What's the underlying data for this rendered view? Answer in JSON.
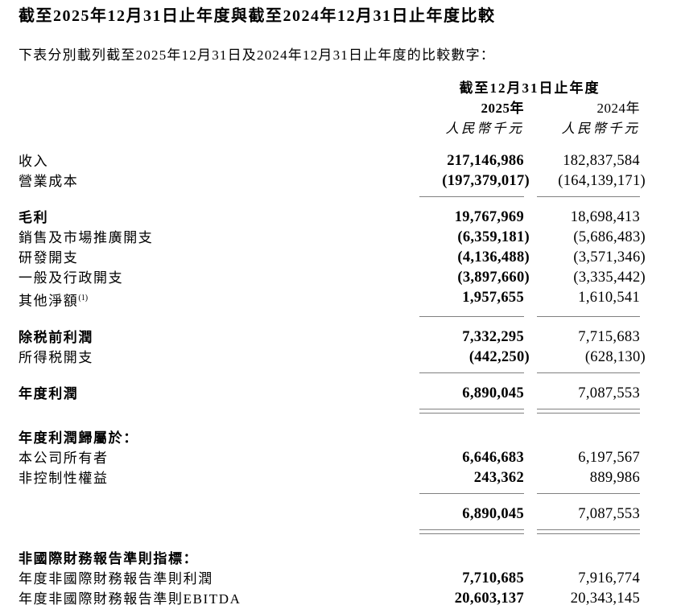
{
  "page": {
    "title": "截至2025年12月31日止年度與截至2024年12月31日止年度比較",
    "subtitle": "下表分別載列截至2025年12月31日及2024年12月31日止年度的比較數字："
  },
  "colors": {
    "text": "#000000",
    "rule": "#808080",
    "background": "#ffffff"
  },
  "table": {
    "period_header": "截至12月31日止年度",
    "col_2025": "2025年",
    "col_2024": "2024年",
    "unit_2025": "人民幣千元",
    "unit_2024": "人民幣千元",
    "rows": [
      {
        "label": "收入",
        "v2025": "217,146,986",
        "v2024": "182,837,584"
      },
      {
        "label": "營業成本",
        "v2025": "(197,379,017)",
        "v2024": "(164,139,171)",
        "rule_after": "single"
      },
      {
        "label": "毛利",
        "bold": true,
        "v2025": "19,767,969",
        "v2024": "18,698,413"
      },
      {
        "label": "銷售及市場推廣開支",
        "v2025": "(6,359,181)",
        "v2024": "(5,686,483)"
      },
      {
        "label": "研發開支",
        "v2025": "(4,136,488)",
        "v2024": "(3,571,346)"
      },
      {
        "label": "一般及行政開支",
        "v2025": "(3,897,660)",
        "v2024": "(3,335,442)"
      },
      {
        "label": "其他淨額",
        "sup": "(1)",
        "v2025": "1,957,655",
        "v2024": "1,610,541",
        "rule_after": "single"
      },
      {
        "label": "除税前利潤",
        "bold": true,
        "v2025": "7,332,295",
        "v2024": "7,715,683"
      },
      {
        "label": "所得税開支",
        "v2025": "(442,250)",
        "v2024": "(628,130)",
        "rule_after": "single"
      },
      {
        "label": "年度利潤",
        "bold": true,
        "v2025": "6,890,045",
        "v2024": "7,087,553",
        "rule_after": "double"
      },
      {
        "label": "年度利潤歸屬於：",
        "bold": true,
        "section_start": true
      },
      {
        "label": "本公司所有者",
        "v2025": "6,646,683",
        "v2024": "6,197,567"
      },
      {
        "label": "非控制性權益",
        "v2025": "243,362",
        "v2024": "889,986",
        "rule_after": "single"
      },
      {
        "label": "",
        "v2025": "6,890,045",
        "v2024": "7,087,553",
        "rule_after": "double"
      },
      {
        "label": "非國際財務報告準則指標：",
        "bold": true,
        "section_start": true
      },
      {
        "label": "年度非國際財務報告準則利潤",
        "v2025": "7,710,685",
        "v2024": "7,916,774"
      },
      {
        "label": "年度非國際財務報告準則EBITDA",
        "v2025": "20,603,137",
        "v2024": "20,343,145"
      }
    ]
  }
}
